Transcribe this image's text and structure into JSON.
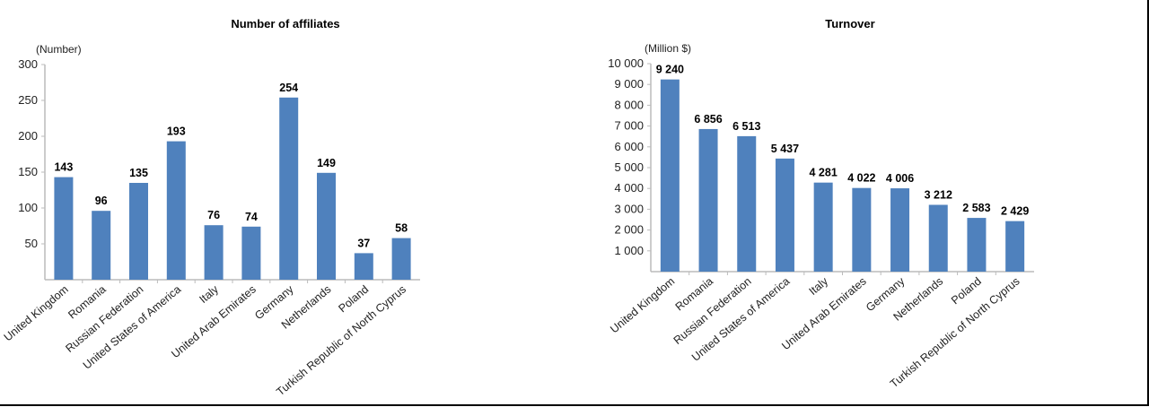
{
  "chart_data": [
    {
      "type": "bar",
      "title": "Number of affiliates",
      "ylabel": "(Number)",
      "xlabel": "",
      "categories": [
        "United Kingdom",
        "Romania",
        "Russian Federation",
        "United States of America",
        "Italy",
        "United Arab Emirates",
        "Germany",
        "Netherlands",
        "Poland",
        "Turkish Republic of North Cyprus"
      ],
      "values": [
        143,
        96,
        135,
        193,
        76,
        74,
        254,
        149,
        37,
        58
      ],
      "data_labels": [
        "143",
        "96",
        "135",
        "193",
        "76",
        "74",
        "254",
        "149",
        "37",
        "58"
      ],
      "ylim": [
        0,
        300
      ],
      "yticks": [
        50,
        100,
        150,
        200,
        250,
        300
      ],
      "ytick_labels": [
        "50",
        "100",
        "150",
        "200",
        "250",
        "300"
      ],
      "grid": false,
      "bar_color": "#4f81bd"
    },
    {
      "type": "bar",
      "title": "Turnover",
      "ylabel": "(Million $)",
      "xlabel": "",
      "categories": [
        "United Kingdom",
        "Romania",
        "Russian Federation",
        "United States of America",
        "Italy",
        "United Arab Emirates",
        "Germany",
        "Netherlands",
        "Poland",
        "Turkish Republic of North Cyprus"
      ],
      "values": [
        9240,
        6856,
        6513,
        5437,
        4281,
        4022,
        4006,
        3212,
        2583,
        2429
      ],
      "data_labels": [
        "9 240",
        "6 856",
        "6 513",
        "5 437",
        "4 281",
        "4 022",
        "4 006",
        "3 212",
        "2 583",
        "2 429"
      ],
      "ylim": [
        0,
        10000
      ],
      "yticks": [
        1000,
        2000,
        3000,
        4000,
        5000,
        6000,
        7000,
        8000,
        9000,
        10000
      ],
      "ytick_labels": [
        "1 000",
        "2 000",
        "3 000",
        "4 000",
        "5 000",
        "6 000",
        "7 000",
        "8 000",
        "9 000",
        "10 000"
      ],
      "grid": false,
      "bar_color": "#4f81bd"
    }
  ]
}
